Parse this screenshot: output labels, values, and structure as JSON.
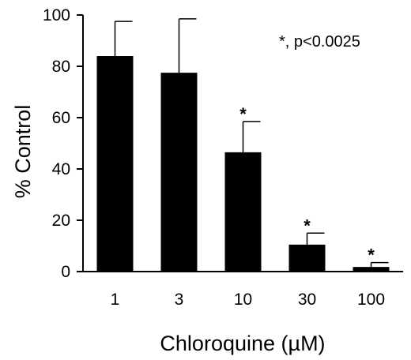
{
  "chart_data": {
    "type": "bar",
    "categories": [
      "1",
      "3",
      "10",
      "30",
      "100"
    ],
    "values": [
      84,
      77.5,
      46.5,
      10.5,
      1.8
    ],
    "errors": [
      13.5,
      21,
      12,
      4.5,
      1.7
    ],
    "significance_marks": [
      "",
      "",
      "*",
      "*",
      "*"
    ],
    "ylabel": "% Control",
    "xlabel": "Chloroquine (µM)",
    "ylim": [
      0,
      100
    ],
    "yticks": [
      "0",
      "20",
      "40",
      "60",
      "80",
      "100"
    ],
    "annotation": "*, p<0.0025",
    "legend": "none",
    "grid": false,
    "bar_color": "#000000"
  }
}
